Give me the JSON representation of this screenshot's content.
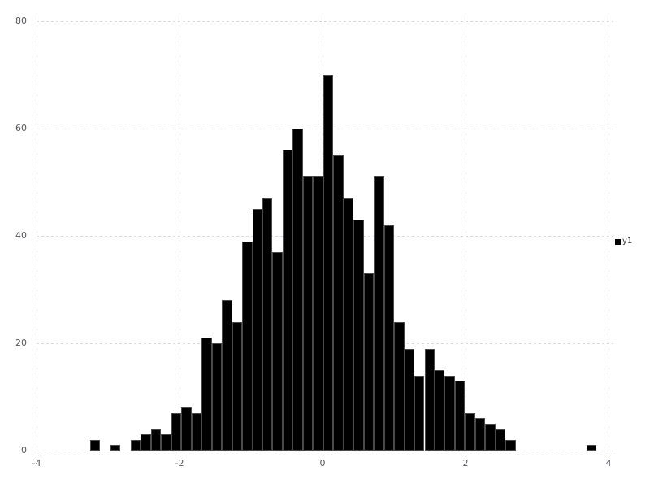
{
  "chart_data": {
    "type": "bar",
    "subtype": "histogram",
    "title": "",
    "xlabel": "",
    "ylabel": "",
    "xlim": [
      -4,
      4
    ],
    "ylim": [
      0,
      80
    ],
    "x_ticks": [
      -4,
      -2,
      0,
      2,
      4
    ],
    "y_ticks": [
      0,
      20,
      40,
      60,
      80
    ],
    "grid": true,
    "legend_position": "right-middle",
    "bin_start": -3.25,
    "bin_width": 0.1417,
    "series": [
      {
        "name": "y1",
        "color": "#000000",
        "values": [
          2,
          0,
          1,
          0,
          2,
          3,
          4,
          3,
          7,
          8,
          7,
          21,
          20,
          28,
          24,
          39,
          45,
          47,
          37,
          56,
          60,
          51,
          51,
          70,
          55,
          47,
          43,
          33,
          51,
          42,
          24,
          19,
          14,
          19,
          15,
          14,
          13,
          7,
          6,
          5,
          4,
          2,
          0,
          0,
          0,
          0,
          0,
          0,
          0,
          1
        ]
      }
    ]
  },
  "legend": {
    "label": "y1",
    "swatch_color": "#000000"
  },
  "style_colors": {
    "bar_fill": "#000000",
    "bar_border": "#4a4a4a",
    "grid": "#d9d9e3",
    "tick_text": "#57575e",
    "legend_text": "#333333"
  }
}
